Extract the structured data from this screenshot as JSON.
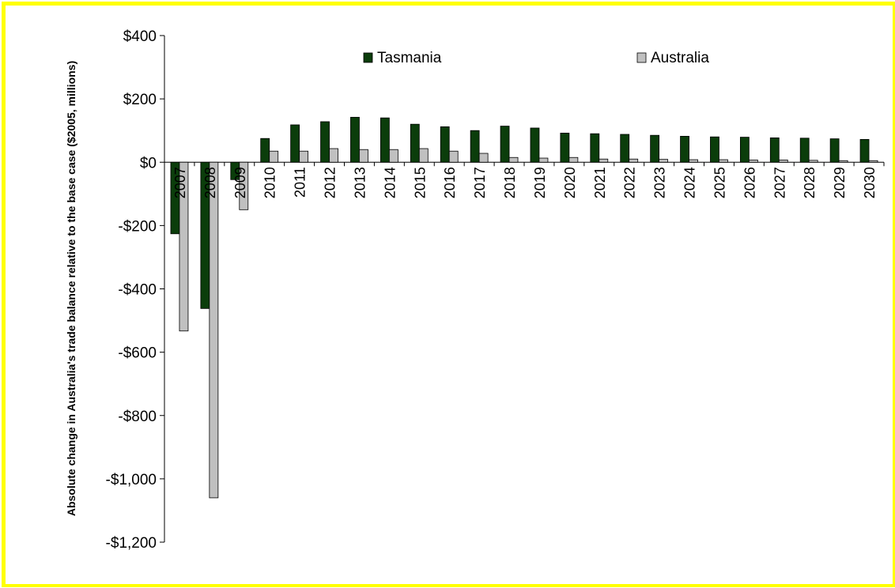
{
  "chart_data": {
    "type": "bar",
    "title": "",
    "xlabel": "",
    "ylabel": "Absolute change in Australia's trade balance relative to the base case ($2005, millions)",
    "ylim": [
      -1200,
      400
    ],
    "y_ticks": [
      400,
      200,
      0,
      -200,
      -400,
      -600,
      -800,
      -1000,
      -1200
    ],
    "y_tick_labels": [
      "$400",
      "$200",
      "$0",
      "-$200",
      "-$400",
      "-$600",
      "-$800",
      "-$1,000",
      "-$1,200"
    ],
    "categories": [
      "2007",
      "2008",
      "2009",
      "2010",
      "2011",
      "2012",
      "2013",
      "2014",
      "2015",
      "2016",
      "2017",
      "2018",
      "2019",
      "2020",
      "2021",
      "2022",
      "2023",
      "2024",
      "2025",
      "2026",
      "2027",
      "2028",
      "2029",
      "2030"
    ],
    "series": [
      {
        "name": "Tasmania",
        "color": "#0b3d0b",
        "values": [
          -226,
          -462,
          -55,
          75,
          118,
          128,
          142,
          140,
          120,
          112,
          100,
          114,
          108,
          92,
          90,
          88,
          85,
          82,
          80,
          79,
          77,
          76,
          74,
          72
        ]
      },
      {
        "name": "Australia",
        "color": "#c0c0c0",
        "values": [
          -533,
          -1060,
          -150,
          35,
          35,
          43,
          40,
          40,
          43,
          35,
          28,
          15,
          13,
          15,
          10,
          10,
          9,
          8,
          8,
          7,
          7,
          6,
          5,
          5
        ]
      }
    ],
    "grid": false,
    "legend": "top"
  }
}
